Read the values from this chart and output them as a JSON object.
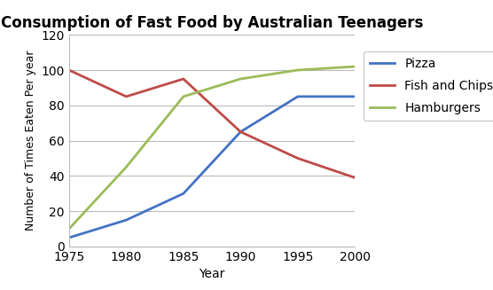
{
  "title": "Consumption of Fast Food by Australian Teenagers",
  "xlabel": "Year",
  "ylabel": "Number of Times Eaten Per year",
  "years": [
    1975,
    1980,
    1985,
    1990,
    1995,
    2000
  ],
  "pizza": [
    5,
    15,
    30,
    65,
    85,
    85
  ],
  "fish_and_chips": [
    100,
    85,
    95,
    65,
    50,
    39
  ],
  "hamburgers": [
    10,
    45,
    85,
    95,
    100,
    102
  ],
  "pizza_color": "#4472C4",
  "fish_color": "#BE4B48",
  "hamburgers_color": "#9BBB59",
  "ylim": [
    0,
    120
  ],
  "yticks": [
    0,
    20,
    40,
    60,
    80,
    100,
    120
  ],
  "xticks": [
    1975,
    1980,
    1985,
    1990,
    1995,
    2000
  ],
  "legend_labels": [
    "Pizza",
    "Fish and Chips",
    "Hamburgers"
  ],
  "linewidth": 2.0,
  "background_color": "#FFFFFF",
  "grid_color": "#BBBBBB",
  "title_fontsize": 12,
  "axis_label_fontsize": 10,
  "tick_fontsize": 10,
  "legend_fontsize": 10
}
